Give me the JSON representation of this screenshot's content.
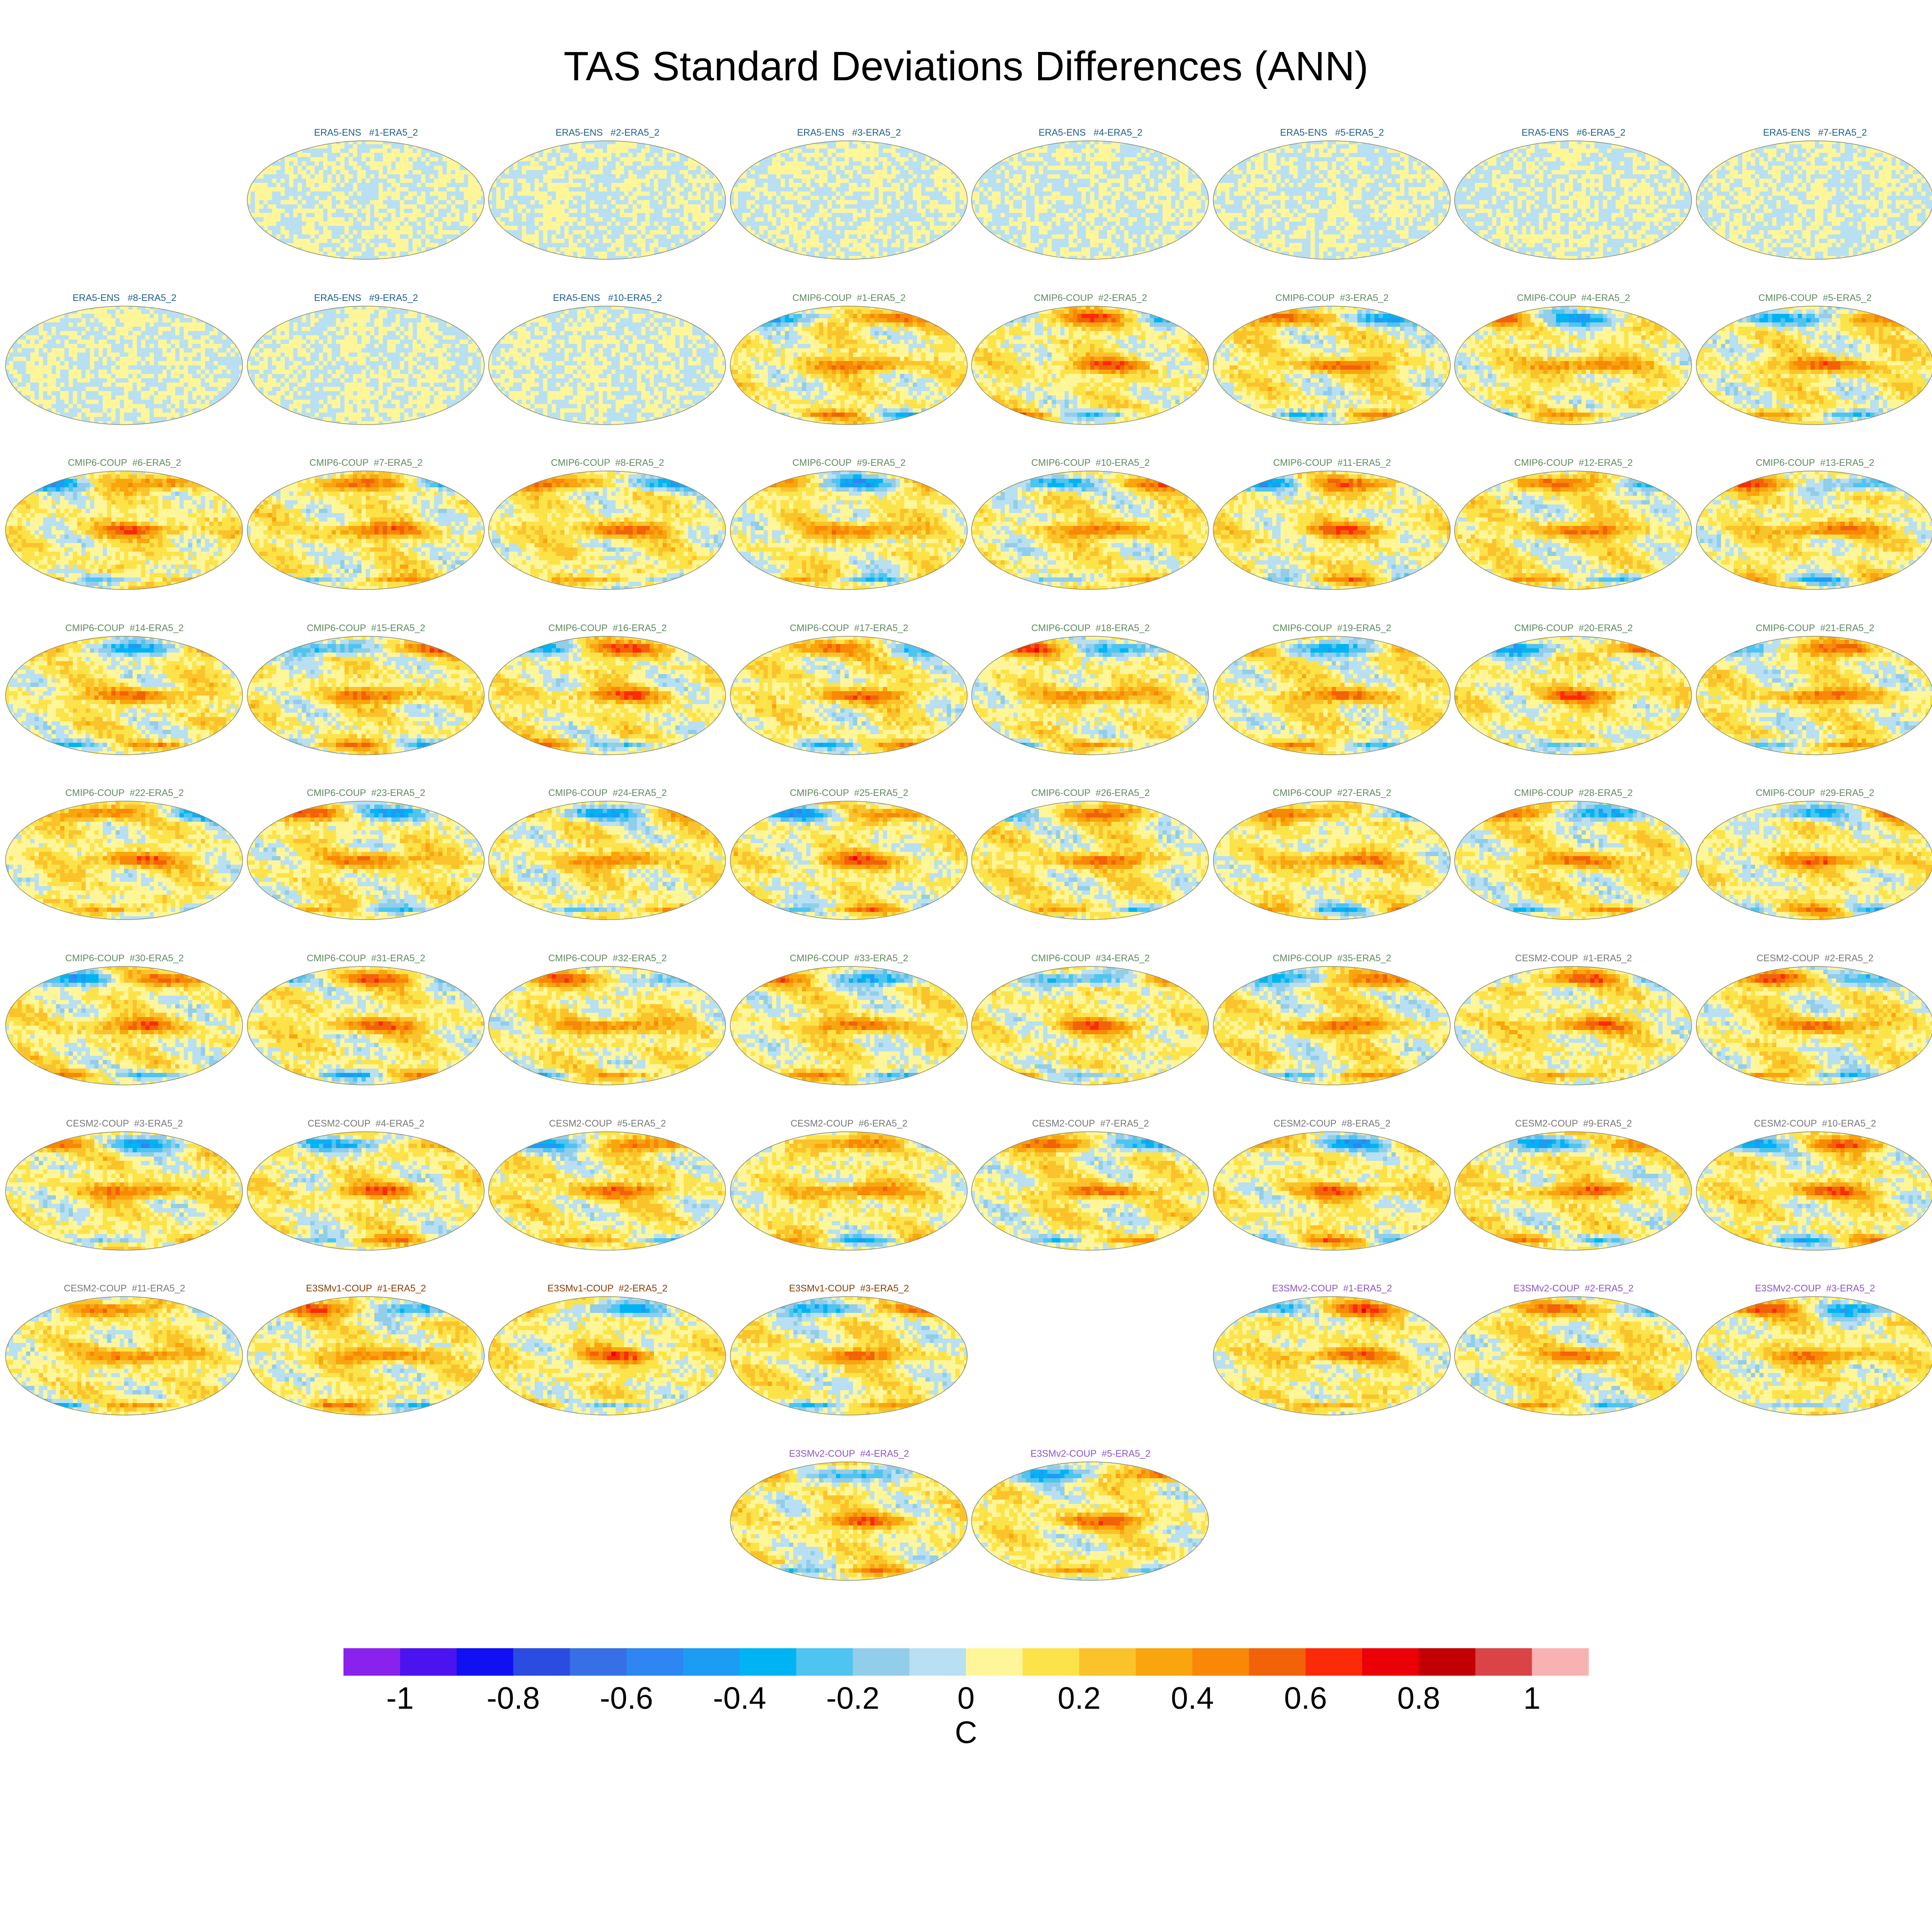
{
  "chart_data": {
    "type": "heatmap",
    "title": "TAS Standard Deviations Differences (ANN)",
    "projection": "Robinson global maps, one panel per model-minus-ERA5 difference",
    "colorbar": {
      "label": "C",
      "tick_labels": [
        "-1",
        "-0.8",
        "-0.6",
        "-0.4",
        "-0.2",
        "0",
        "0.2",
        "0.4",
        "0.6",
        "0.8",
        "1"
      ],
      "levels": [
        -1,
        -0.9,
        -0.8,
        -0.7,
        -0.6,
        -0.5,
        -0.4,
        -0.3,
        -0.2,
        -0.1,
        0,
        0.1,
        0.2,
        0.3,
        0.4,
        0.5,
        0.6,
        0.7,
        0.8,
        0.9,
        1
      ],
      "colors": [
        "#8a22ee",
        "#4a13f0",
        "#1010f2",
        "#2b4ce0",
        "#3670e4",
        "#2d86f1",
        "#1c9cf3",
        "#00b4f3",
        "#4ec4f1",
        "#92cde9",
        "#b8e0f2",
        "#fff69a",
        "#fde34a",
        "#fbc32b",
        "#f9a50d",
        "#f88806",
        "#f26208",
        "#fd2a09",
        "#ec0007",
        "#c20003",
        "#db4446",
        "#f9b2b2"
      ]
    },
    "panels": [
      {
        "label": "ERA5-ENS   #1-ERA5_2",
        "group": "ERA5-ENS",
        "row": 0,
        "col": 1,
        "amplitude": 0.1
      },
      {
        "label": "ERA5-ENS   #2-ERA5_2",
        "group": "ERA5-ENS",
        "row": 0,
        "col": 2,
        "amplitude": 0.1
      },
      {
        "label": "ERA5-ENS   #3-ERA5_2",
        "group": "ERA5-ENS",
        "row": 0,
        "col": 3,
        "amplitude": 0.1
      },
      {
        "label": "ERA5-ENS   #4-ERA5_2",
        "group": "ERA5-ENS",
        "row": 0,
        "col": 4,
        "amplitude": 0.1
      },
      {
        "label": "ERA5-ENS   #5-ERA5_2",
        "group": "ERA5-ENS",
        "row": 0,
        "col": 5,
        "amplitude": 0.1
      },
      {
        "label": "ERA5-ENS   #6-ERA5_2",
        "group": "ERA5-ENS",
        "row": 0,
        "col": 6,
        "amplitude": 0.1
      },
      {
        "label": "ERA5-ENS   #7-ERA5_2",
        "group": "ERA5-ENS",
        "row": 0,
        "col": 7,
        "amplitude": 0.1
      },
      {
        "label": "ERA5-ENS   #8-ERA5_2",
        "group": "ERA5-ENS",
        "row": 1,
        "col": 0,
        "amplitude": 0.1
      },
      {
        "label": "ERA5-ENS   #9-ERA5_2",
        "group": "ERA5-ENS",
        "row": 1,
        "col": 1,
        "amplitude": 0.1
      },
      {
        "label": "ERA5-ENS   #10-ERA5_2",
        "group": "ERA5-ENS",
        "row": 1,
        "col": 2,
        "amplitude": 0.1
      },
      {
        "label": "CMIP6-COUP  #1-ERA5_2",
        "group": "CMIP6-COUP",
        "row": 1,
        "col": 3,
        "amplitude": 0.8
      },
      {
        "label": "CMIP6-COUP  #2-ERA5_2",
        "group": "CMIP6-COUP",
        "row": 1,
        "col": 4,
        "amplitude": 0.8
      },
      {
        "label": "CMIP6-COUP  #3-ERA5_2",
        "group": "CMIP6-COUP",
        "row": 1,
        "col": 5,
        "amplitude": 0.8
      },
      {
        "label": "CMIP6-COUP  #4-ERA5_2",
        "group": "CMIP6-COUP",
        "row": 1,
        "col": 6,
        "amplitude": 0.8
      },
      {
        "label": "CMIP6-COUP  #5-ERA5_2",
        "group": "CMIP6-COUP",
        "row": 1,
        "col": 7,
        "amplitude": 0.8
      },
      {
        "label": "CMIP6-COUP  #6-ERA5_2",
        "group": "CMIP6-COUP",
        "row": 2,
        "col": 0,
        "amplitude": 0.8
      },
      {
        "label": "CMIP6-COUP  #7-ERA5_2",
        "group": "CMIP6-COUP",
        "row": 2,
        "col": 1,
        "amplitude": 0.8
      },
      {
        "label": "CMIP6-COUP  #8-ERA5_2",
        "group": "CMIP6-COUP",
        "row": 2,
        "col": 2,
        "amplitude": 0.8
      },
      {
        "label": "CMIP6-COUP  #9-ERA5_2",
        "group": "CMIP6-COUP",
        "row": 2,
        "col": 3,
        "amplitude": 0.8
      },
      {
        "label": "CMIP6-COUP  #10-ERA5_2",
        "group": "CMIP6-COUP",
        "row": 2,
        "col": 4,
        "amplitude": 0.8
      },
      {
        "label": "CMIP6-COUP  #11-ERA5_2",
        "group": "CMIP6-COUP",
        "row": 2,
        "col": 5,
        "amplitude": 0.8
      },
      {
        "label": "CMIP6-COUP  #12-ERA5_2",
        "group": "CMIP6-COUP",
        "row": 2,
        "col": 6,
        "amplitude": 0.8
      },
      {
        "label": "CMIP6-COUP  #13-ERA5_2",
        "group": "CMIP6-COUP",
        "row": 2,
        "col": 7,
        "amplitude": 0.8
      },
      {
        "label": "CMIP6-COUP  #14-ERA5_2",
        "group": "CMIP6-COUP",
        "row": 3,
        "col": 0,
        "amplitude": 0.8
      },
      {
        "label": "CMIP6-COUP  #15-ERA5_2",
        "group": "CMIP6-COUP",
        "row": 3,
        "col": 1,
        "amplitude": 0.8
      },
      {
        "label": "CMIP6-COUP  #16-ERA5_2",
        "group": "CMIP6-COUP",
        "row": 3,
        "col": 2,
        "amplitude": 0.8
      },
      {
        "label": "CMIP6-COUP  #17-ERA5_2",
        "group": "CMIP6-COUP",
        "row": 3,
        "col": 3,
        "amplitude": 0.8
      },
      {
        "label": "CMIP6-COUP  #18-ERA5_2",
        "group": "CMIP6-COUP",
        "row": 3,
        "col": 4,
        "amplitude": 0.8
      },
      {
        "label": "CMIP6-COUP  #19-ERA5_2",
        "group": "CMIP6-COUP",
        "row": 3,
        "col": 5,
        "amplitude": 0.8
      },
      {
        "label": "CMIP6-COUP  #20-ERA5_2",
        "group": "CMIP6-COUP",
        "row": 3,
        "col": 6,
        "amplitude": 0.8
      },
      {
        "label": "CMIP6-COUP  #21-ERA5_2",
        "group": "CMIP6-COUP",
        "row": 3,
        "col": 7,
        "amplitude": 0.8
      },
      {
        "label": "CMIP6-COUP  #22-ERA5_2",
        "group": "CMIP6-COUP",
        "row": 4,
        "col": 0,
        "amplitude": 0.8
      },
      {
        "label": "CMIP6-COUP  #23-ERA5_2",
        "group": "CMIP6-COUP",
        "row": 4,
        "col": 1,
        "amplitude": 0.8
      },
      {
        "label": "CMIP6-COUP  #24-ERA5_2",
        "group": "CMIP6-COUP",
        "row": 4,
        "col": 2,
        "amplitude": 0.8
      },
      {
        "label": "CMIP6-COUP  #25-ERA5_2",
        "group": "CMIP6-COUP",
        "row": 4,
        "col": 3,
        "amplitude": 0.8
      },
      {
        "label": "CMIP6-COUP  #26-ERA5_2",
        "group": "CMIP6-COUP",
        "row": 4,
        "col": 4,
        "amplitude": 0.8
      },
      {
        "label": "CMIP6-COUP  #27-ERA5_2",
        "group": "CMIP6-COUP",
        "row": 4,
        "col": 5,
        "amplitude": 0.8
      },
      {
        "label": "CMIP6-COUP  #28-ERA5_2",
        "group": "CMIP6-COUP",
        "row": 4,
        "col": 6,
        "amplitude": 0.8
      },
      {
        "label": "CMIP6-COUP  #29-ERA5_2",
        "group": "CMIP6-COUP",
        "row": 4,
        "col": 7,
        "amplitude": 0.8
      },
      {
        "label": "CMIP6-COUP  #30-ERA5_2",
        "group": "CMIP6-COUP",
        "row": 5,
        "col": 0,
        "amplitude": 0.8
      },
      {
        "label": "CMIP6-COUP  #31-ERA5_2",
        "group": "CMIP6-COUP",
        "row": 5,
        "col": 1,
        "amplitude": 0.8
      },
      {
        "label": "CMIP6-COUP  #32-ERA5_2",
        "group": "CMIP6-COUP",
        "row": 5,
        "col": 2,
        "amplitude": 0.8
      },
      {
        "label": "CMIP6-COUP  #33-ERA5_2",
        "group": "CMIP6-COUP",
        "row": 5,
        "col": 3,
        "amplitude": 0.8
      },
      {
        "label": "CMIP6-COUP  #34-ERA5_2",
        "group": "CMIP6-COUP",
        "row": 5,
        "col": 4,
        "amplitude": 0.8
      },
      {
        "label": "CMIP6-COUP  #35-ERA5_2",
        "group": "CMIP6-COUP",
        "row": 5,
        "col": 5,
        "amplitude": 0.8
      },
      {
        "label": "CESM2-COUP  #1-ERA5_2",
        "group": "CESM2-COUP",
        "row": 5,
        "col": 6,
        "amplitude": 0.8
      },
      {
        "label": "CESM2-COUP  #2-ERA5_2",
        "group": "CESM2-COUP",
        "row": 5,
        "col": 7,
        "amplitude": 0.8
      },
      {
        "label": "CESM2-COUP  #3-ERA5_2",
        "group": "CESM2-COUP",
        "row": 6,
        "col": 0,
        "amplitude": 0.8
      },
      {
        "label": "CESM2-COUP  #4-ERA5_2",
        "group": "CESM2-COUP",
        "row": 6,
        "col": 1,
        "amplitude": 0.8
      },
      {
        "label": "CESM2-COUP  #5-ERA5_2",
        "group": "CESM2-COUP",
        "row": 6,
        "col": 2,
        "amplitude": 0.8
      },
      {
        "label": "CESM2-COUP  #6-ERA5_2",
        "group": "CESM2-COUP",
        "row": 6,
        "col": 3,
        "amplitude": 0.8
      },
      {
        "label": "CESM2-COUP  #7-ERA5_2",
        "group": "CESM2-COUP",
        "row": 6,
        "col": 4,
        "amplitude": 0.8
      },
      {
        "label": "CESM2-COUP  #8-ERA5_2",
        "group": "CESM2-COUP",
        "row": 6,
        "col": 5,
        "amplitude": 0.8
      },
      {
        "label": "CESM2-COUP  #9-ERA5_2",
        "group": "CESM2-COUP",
        "row": 6,
        "col": 6,
        "amplitude": 0.8
      },
      {
        "label": "CESM2-COUP  #10-ERA5_2",
        "group": "CESM2-COUP",
        "row": 6,
        "col": 7,
        "amplitude": 0.8
      },
      {
        "label": "CESM2-COUP  #11-ERA5_2",
        "group": "CESM2-COUP",
        "row": 7,
        "col": 0,
        "amplitude": 0.8
      },
      {
        "label": "E3SMv1-COUP  #1-ERA5_2",
        "group": "E3SMv1-COUP",
        "row": 7,
        "col": 1,
        "amplitude": 0.8
      },
      {
        "label": "E3SMv1-COUP  #2-ERA5_2",
        "group": "E3SMv1-COUP",
        "row": 7,
        "col": 2,
        "amplitude": 0.8
      },
      {
        "label": "E3SMv1-COUP  #3-ERA5_2",
        "group": "E3SMv1-COUP",
        "row": 7,
        "col": 3,
        "amplitude": 0.8
      },
      {
        "label": "E3SMv2-COUP  #1-ERA5_2",
        "group": "E3SMv2-COUP",
        "row": 7,
        "col": 5,
        "amplitude": 0.8
      },
      {
        "label": "E3SMv2-COUP  #2-ERA5_2",
        "group": "E3SMv2-COUP",
        "row": 7,
        "col": 6,
        "amplitude": 0.8
      },
      {
        "label": "E3SMv2-COUP  #3-ERA5_2",
        "group": "E3SMv2-COUP",
        "row": 7,
        "col": 7,
        "amplitude": 0.8
      },
      {
        "label": "E3SMv2-COUP  #4-ERA5_2",
        "group": "E3SMv2-COUP",
        "row": 8,
        "col": 3,
        "amplitude": 0.8
      },
      {
        "label": "E3SMv2-COUP  #5-ERA5_2",
        "group": "E3SMv2-COUP",
        "row": 8,
        "col": 4,
        "amplitude": 0.8
      }
    ],
    "group_title_colors": {
      "ERA5-ENS": "#1d5f8a",
      "CMIP6-COUP": "#5f8a5f",
      "CESM2-COUP": "#777777",
      "E3SMv1-COUP": "#8a3a00",
      "E3SMv2-COUP": "#8a55c8"
    }
  }
}
